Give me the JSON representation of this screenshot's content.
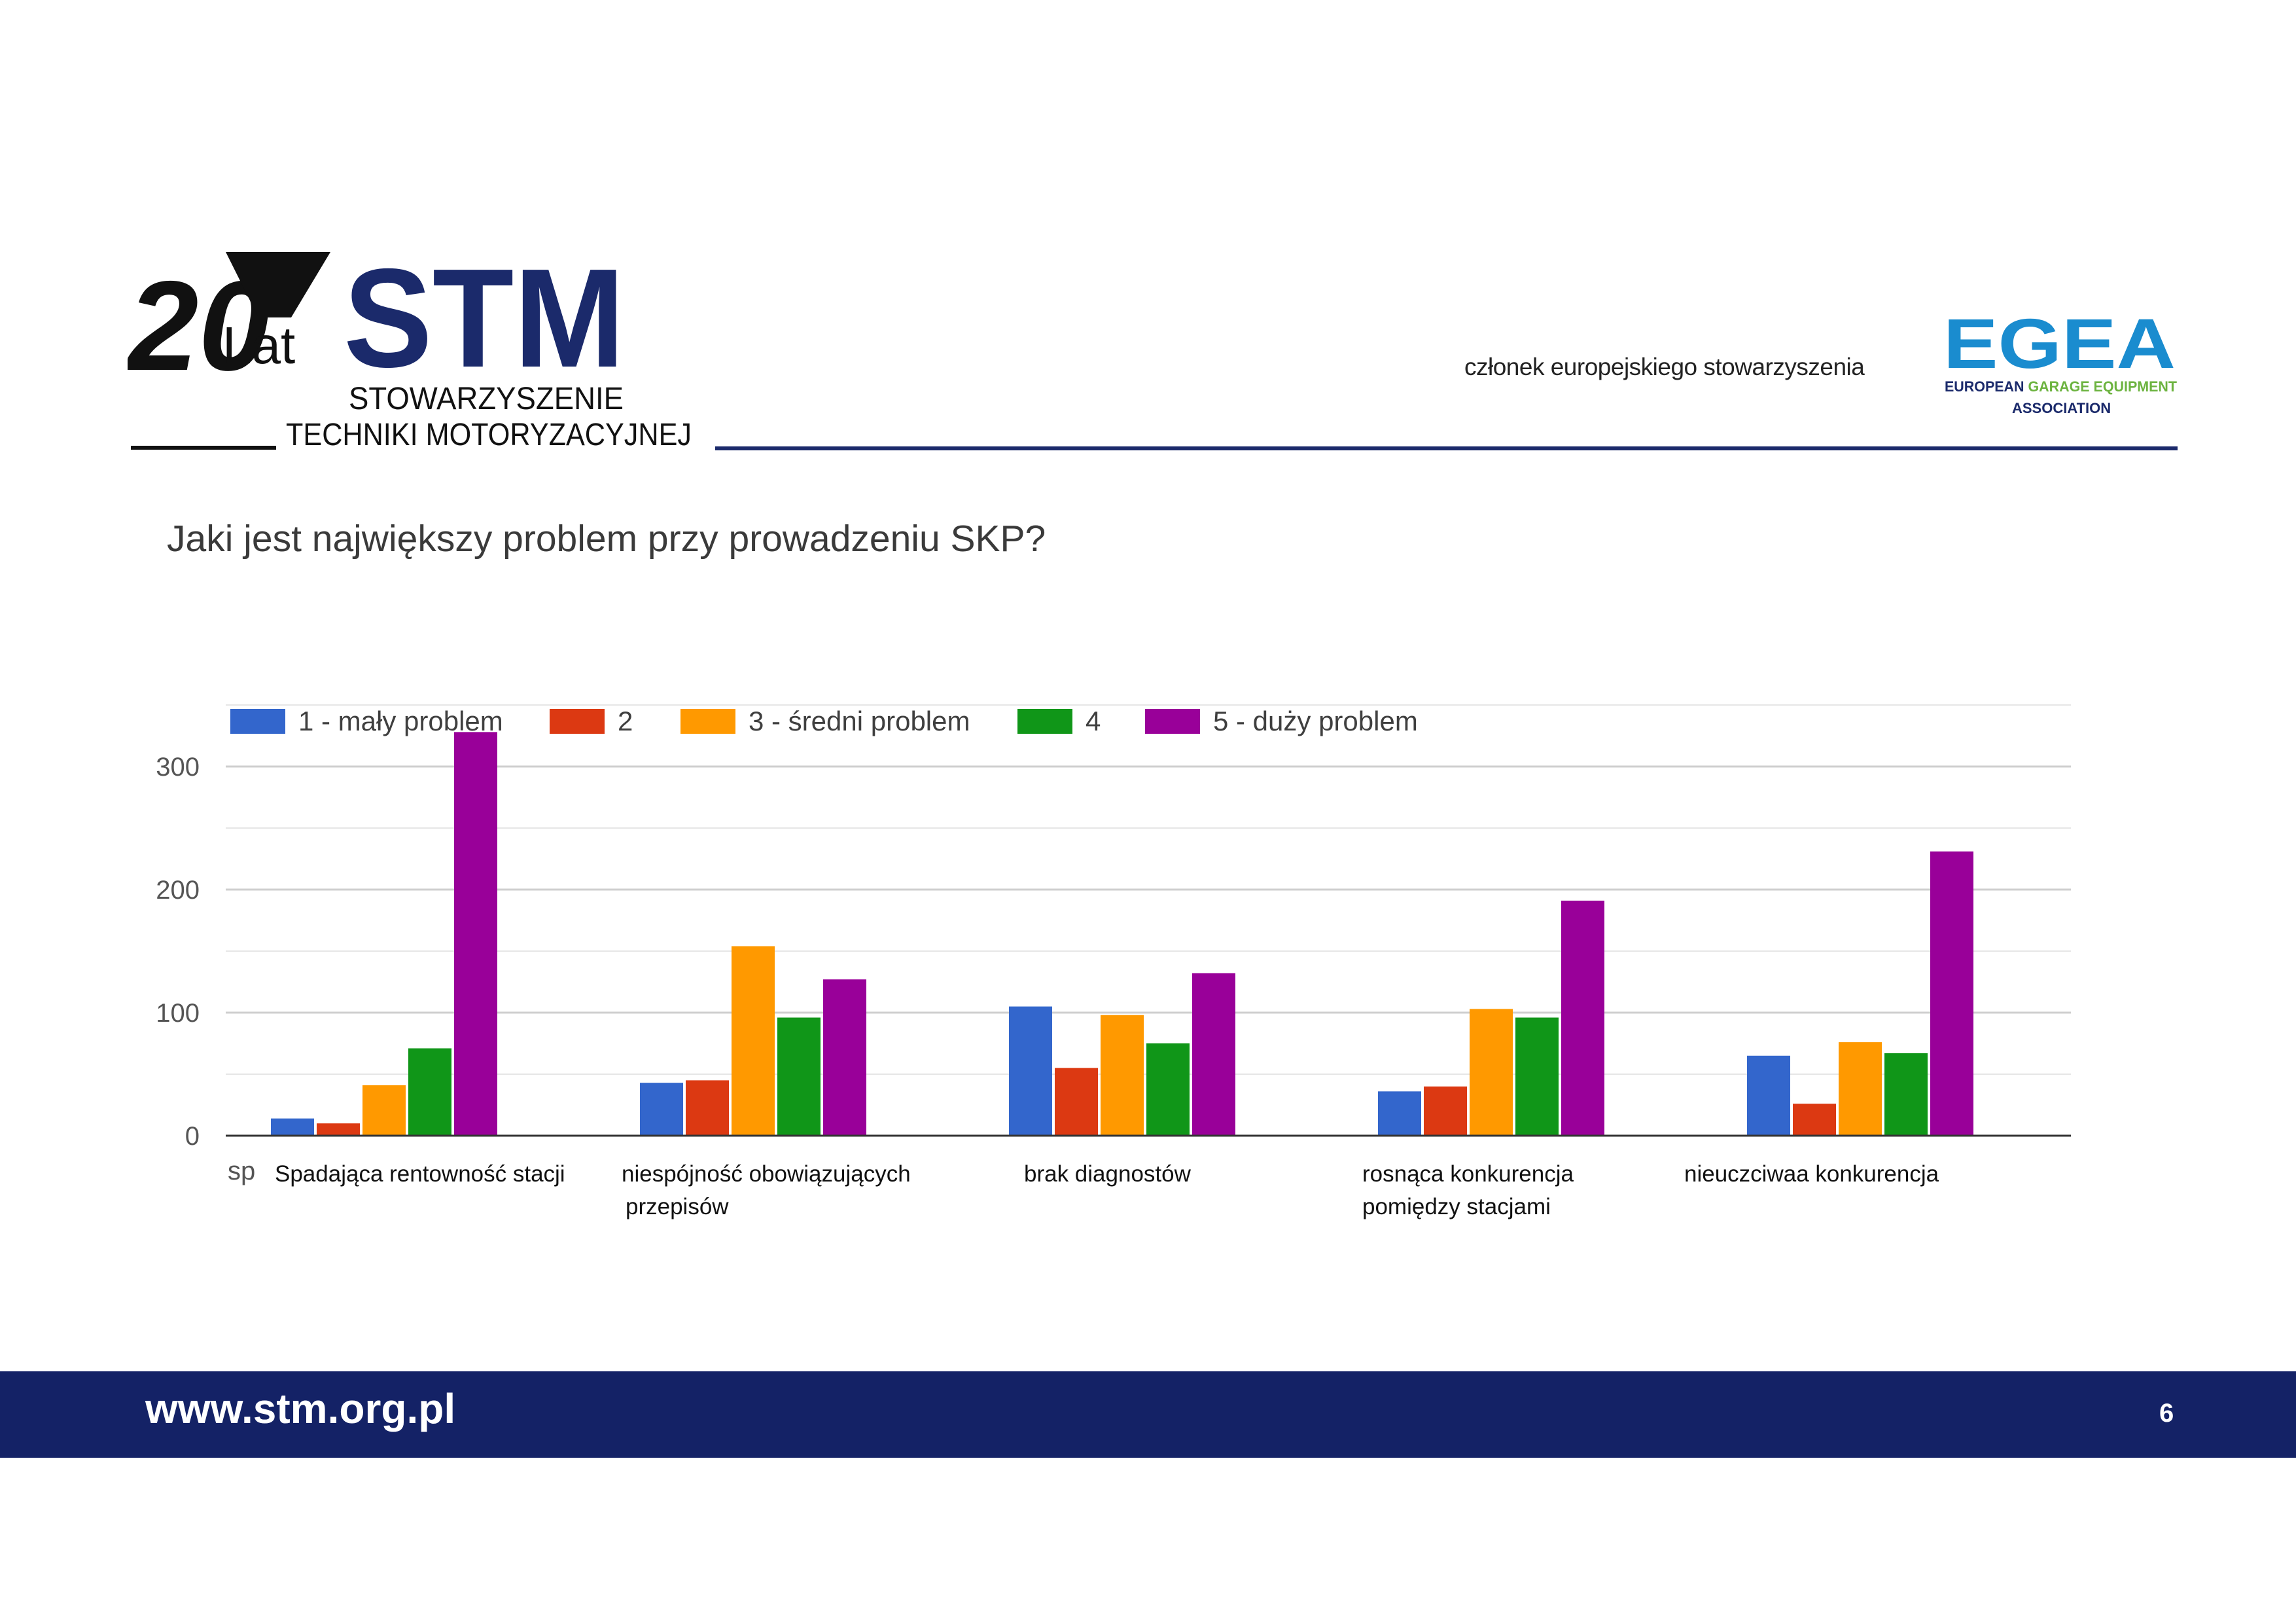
{
  "header": {
    "logo_stm": {
      "years": "20",
      "lat": "Lat",
      "brand": "STM",
      "line1": "STOWARZYSZENIE",
      "line2": "TECHNIKI MOTORYZACYJNEJ"
    },
    "member_text": "członek europejskiego stowarzyszenia",
    "logo_egea": {
      "brand": "EGEA",
      "line1_a": "EUROPEAN ",
      "line1_b": "GARAGE EQUIPMENT",
      "line2": "ASSOCIATION"
    }
  },
  "question": "Jaki jest największy problem przy prowadzeniu SKP?",
  "chart_data": {
    "type": "bar",
    "title": "",
    "xlabel": "",
    "ylabel": "",
    "ylim": [
      0,
      350
    ],
    "yticks": [
      0,
      100,
      200,
      300
    ],
    "grid": true,
    "legend_position": "top-left",
    "categories": [
      [
        "Spadająca rentowność stacji"
      ],
      [
        "niespójność obowiązujących",
        "przepisów"
      ],
      [
        "brak diagnostów"
      ],
      [
        "rosnąca konkurencja",
        "pomiędzy stacjami"
      ],
      [
        "nieuczciwaa konkurencja"
      ]
    ],
    "axis_stub": "sp",
    "series": [
      {
        "name": "1 - mały problem",
        "color": "#3366cc",
        "values": [
          14,
          43,
          105,
          36,
          65
        ]
      },
      {
        "name": "2",
        "color": "#dc3912",
        "values": [
          10,
          45,
          55,
          40,
          26
        ]
      },
      {
        "name": "3 - średni problem",
        "color": "#ff9900",
        "values": [
          41,
          154,
          98,
          103,
          76
        ]
      },
      {
        "name": "4",
        "color": "#109618",
        "values": [
          71,
          96,
          75,
          96,
          67
        ]
      },
      {
        "name": "5 - duży problem",
        "color": "#990099",
        "values": [
          328,
          127,
          132,
          191,
          231
        ]
      }
    ]
  },
  "footer": {
    "url": "www.stm.org.pl",
    "page": "6"
  },
  "colors": {
    "navy": "#142266",
    "stm_blue": "#1b2a6b",
    "egea_blue": "#1a8ccf",
    "egea_green": "#6cb33f"
  }
}
